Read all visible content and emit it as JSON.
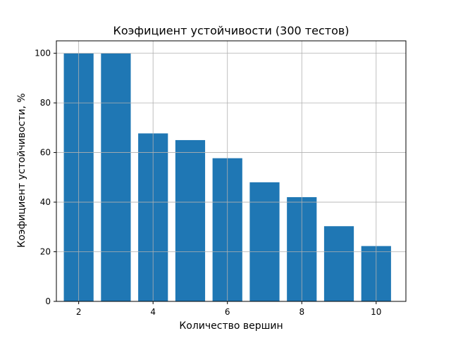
{
  "chart_data": {
    "type": "bar",
    "title": "Коэфициент устойчивости (300 тестов)",
    "xlabel": "Количество вершин",
    "ylabel": "Коэфициент устойчивости, %",
    "x": [
      2,
      3,
      4,
      5,
      6,
      7,
      8,
      9,
      10
    ],
    "values": [
      100,
      100,
      67.7,
      65.0,
      57.7,
      48.0,
      42.0,
      30.3,
      22.3
    ],
    "xlim": [
      1.4,
      10.8
    ],
    "ylim": [
      0,
      105
    ],
    "xticks": [
      2,
      4,
      6,
      8,
      10
    ],
    "yticks": [
      0,
      20,
      40,
      60,
      80,
      100
    ],
    "grid": true,
    "bar_color": "#1f77b4"
  }
}
